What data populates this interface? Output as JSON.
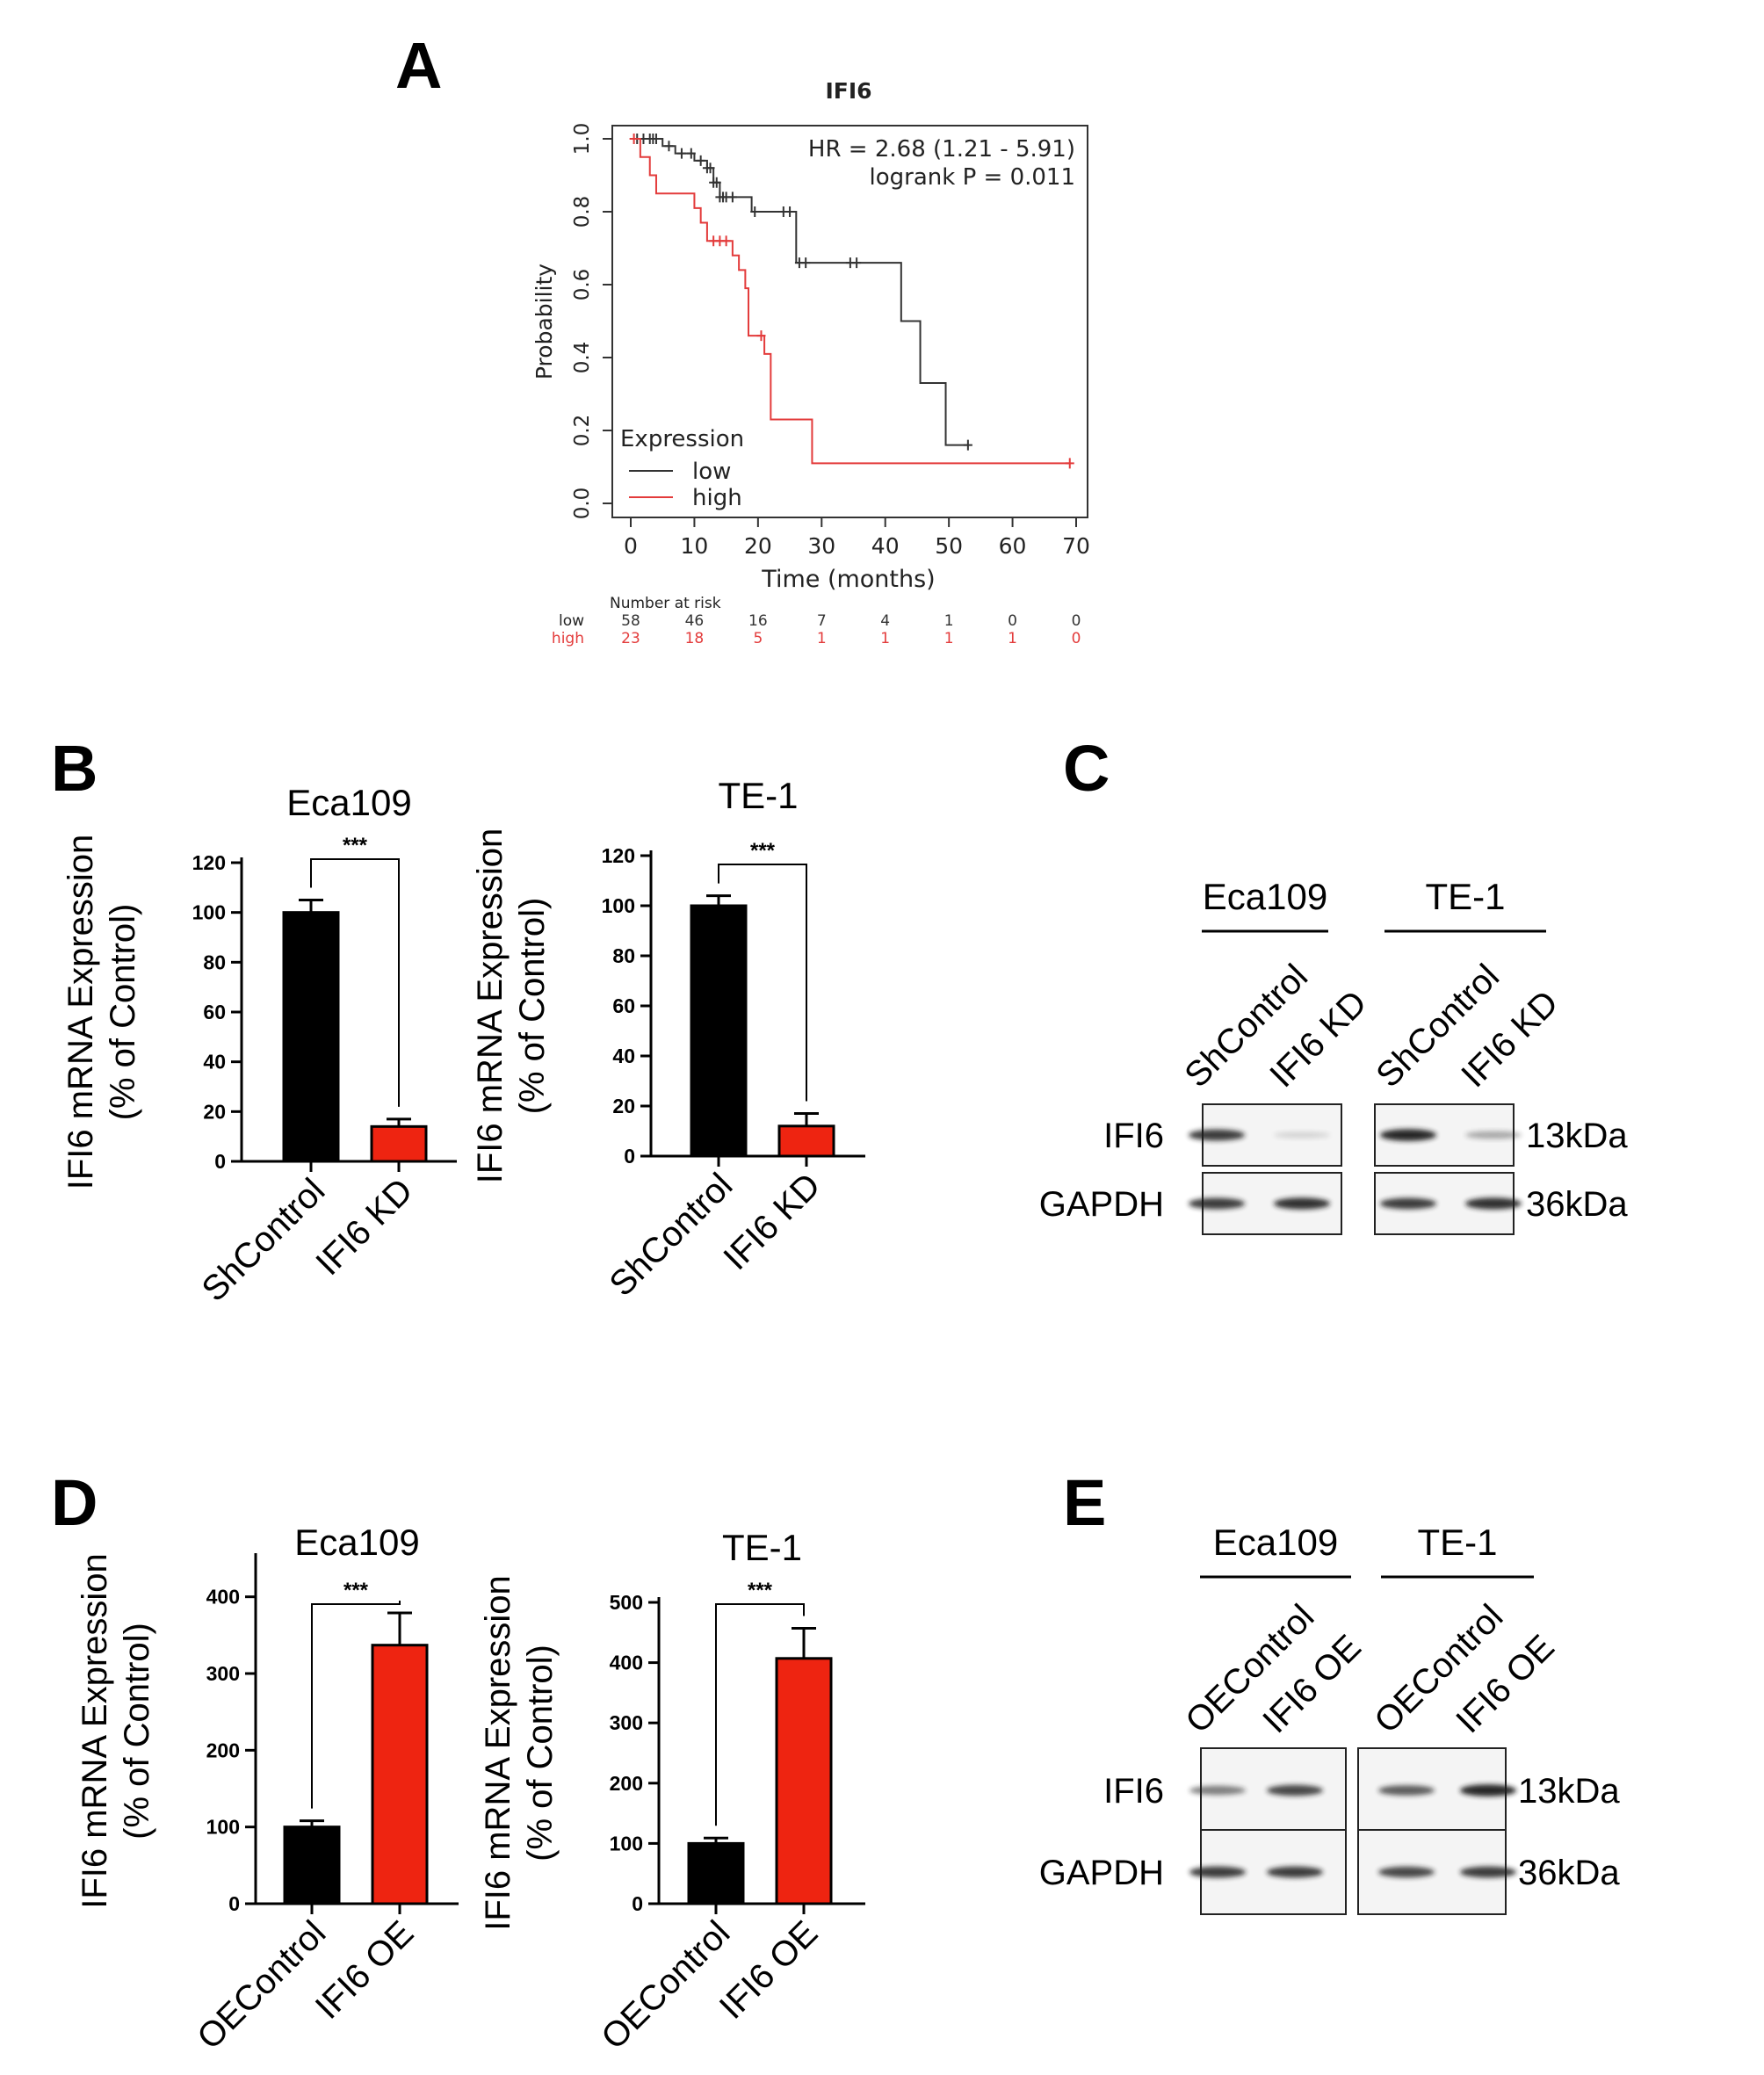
{
  "colors": {
    "black_series": "#000000",
    "red_series": "#ee2411",
    "km_low": "#333333",
    "km_high": "#e33b3b",
    "blot_band": "#1a1a1a"
  },
  "panels": {
    "A": "A",
    "B": "B",
    "C": "C",
    "D": "D",
    "E": "E"
  },
  "chart_data": [
    {
      "panel": "A",
      "type": "line",
      "subtype": "kaplan-meier",
      "title": "IFI6",
      "xlabel": "Time (months)",
      "ylabel": "Probability",
      "xlim": [
        0,
        70
      ],
      "ylim": [
        0,
        1
      ],
      "xticks": [
        "0",
        "10",
        "20",
        "30",
        "40",
        "50",
        "60",
        "70"
      ],
      "yticks": [
        "0.0",
        "0.2",
        "0.4",
        "0.6",
        "0.8",
        "1.0"
      ],
      "annotation": [
        "HR = 2.68 (1.21 - 5.91)",
        "logrank P = 0.011"
      ],
      "legend_title": "Expression",
      "legend_position": "bottom-left",
      "series": [
        {
          "name": "low",
          "color": "#333333",
          "steps": [
            [
              0,
              1.0
            ],
            [
              5,
              0.98
            ],
            [
              7,
              0.96
            ],
            [
              10,
              0.94
            ],
            [
              12,
              0.92
            ],
            [
              13,
              0.88
            ],
            [
              14,
              0.84
            ],
            [
              19,
              0.8
            ],
            [
              25,
              0.8
            ],
            [
              26,
              0.66
            ],
            [
              42,
              0.66
            ],
            [
              42.5,
              0.5
            ],
            [
              45,
              0.5
            ],
            [
              45.5,
              0.33
            ],
            [
              49,
              0.33
            ],
            [
              49.5,
              0.16
            ],
            [
              53,
              0.16
            ]
          ],
          "censor_x": [
            1,
            2,
            3,
            3.5,
            4,
            6,
            8,
            9.5,
            11,
            12,
            12.5,
            13,
            13.5,
            14,
            14.5,
            15,
            16,
            19.5,
            24,
            25,
            26.5,
            27.5,
            34.5,
            35.5,
            53
          ]
        },
        {
          "name": "high",
          "color": "#e33b3b",
          "steps": [
            [
              0,
              1.0
            ],
            [
              1.5,
              0.95
            ],
            [
              3,
              0.9
            ],
            [
              4,
              0.85
            ],
            [
              10,
              0.81
            ],
            [
              11,
              0.77
            ],
            [
              12,
              0.72
            ],
            [
              16,
              0.68
            ],
            [
              17,
              0.64
            ],
            [
              18,
              0.59
            ],
            [
              18.5,
              0.46
            ],
            [
              21,
              0.41
            ],
            [
              22,
              0.23
            ],
            [
              28,
              0.23
            ],
            [
              28.5,
              0.11
            ],
            [
              69,
              0.11
            ]
          ],
          "censor_x": [
            0.5,
            13,
            14,
            15,
            20.5,
            69
          ]
        }
      ],
      "risk_table": {
        "title": "Number at risk",
        "rows": [
          {
            "label": "low",
            "color": "#333333",
            "values": [
              "58",
              "46",
              "16",
              "7",
              "4",
              "1",
              "0",
              "0"
            ]
          },
          {
            "label": "high",
            "color": "#e33b3b",
            "values": [
              "23",
              "18",
              "5",
              "1",
              "1",
              "1",
              "1",
              "0"
            ]
          }
        ]
      }
    },
    {
      "panel": "B",
      "type": "bar",
      "title": "Eca109",
      "ylabel_lines": [
        "IFI6 mRNA Expression",
        "(% of Control)"
      ],
      "categories": [
        "ShControl",
        "IFI6 KD"
      ],
      "values": [
        100,
        14
      ],
      "errors": [
        5,
        3
      ],
      "colors": [
        "#000000",
        "#ee2411"
      ],
      "ylim": [
        0,
        120
      ],
      "yticks": [
        "0",
        "20",
        "40",
        "60",
        "80",
        "100",
        "120"
      ],
      "significance": "***"
    },
    {
      "panel": "B",
      "type": "bar",
      "title": "TE-1",
      "ylabel_lines": [
        "IFI6 mRNA Expression",
        "(% of Control)"
      ],
      "categories": [
        "ShControl",
        "IFI6 KD"
      ],
      "values": [
        100,
        12
      ],
      "errors": [
        4,
        5
      ],
      "colors": [
        "#000000",
        "#ee2411"
      ],
      "ylim": [
        0,
        120
      ],
      "yticks": [
        "0",
        "20",
        "40",
        "60",
        "80",
        "100",
        "120"
      ],
      "significance": "***"
    },
    {
      "panel": "D",
      "type": "bar",
      "title": "Eca109",
      "ylabel_lines": [
        "IFI6 mRNA Expression",
        "(% of Control)"
      ],
      "categories": [
        "OEControl",
        "IFI6 OE"
      ],
      "values": [
        100,
        337
      ],
      "errors": [
        8,
        42
      ],
      "colors": [
        "#000000",
        "#ee2411"
      ],
      "ylim": [
        0,
        450
      ],
      "yticks": [
        "0",
        "100",
        "200",
        "300",
        "400"
      ],
      "significance": "***"
    },
    {
      "panel": "D",
      "type": "bar",
      "title": "TE-1",
      "ylabel_lines": [
        "IFI6 mRNA Expression",
        "(% of Control)"
      ],
      "categories": [
        "OEControl",
        "IFI6 OE"
      ],
      "values": [
        100,
        407
      ],
      "errors": [
        9,
        50
      ],
      "colors": [
        "#000000",
        "#ee2411"
      ],
      "ylim": [
        0,
        500
      ],
      "yticks": [
        "0",
        "100",
        "200",
        "300",
        "400",
        "500"
      ],
      "significance": "***"
    }
  ],
  "blots": [
    {
      "panel": "C",
      "groups": [
        "Eca109",
        "TE-1"
      ],
      "lanes": [
        "ShControl",
        "IFI6 KD",
        "ShControl",
        "IFI6 KD"
      ],
      "rows": [
        {
          "label": "IFI6",
          "mw": "13kDa",
          "intensity": [
            0.85,
            0.15,
            0.95,
            0.35
          ]
        },
        {
          "label": "GAPDH",
          "mw": "36kDa",
          "intensity": [
            0.85,
            0.9,
            0.85,
            0.9
          ]
        }
      ]
    },
    {
      "panel": "E",
      "groups": [
        "Eca109",
        "TE-1"
      ],
      "lanes": [
        "OEControl",
        "IFI6 OE",
        "OEControl",
        "IFI6 OE"
      ],
      "rows": [
        {
          "label": "IFI6",
          "mw": "13kDa",
          "intensity": [
            0.55,
            0.8,
            0.7,
            0.95
          ]
        },
        {
          "label": "GAPDH",
          "mw": "36kDa",
          "intensity": [
            0.85,
            0.85,
            0.8,
            0.85
          ]
        }
      ]
    }
  ]
}
